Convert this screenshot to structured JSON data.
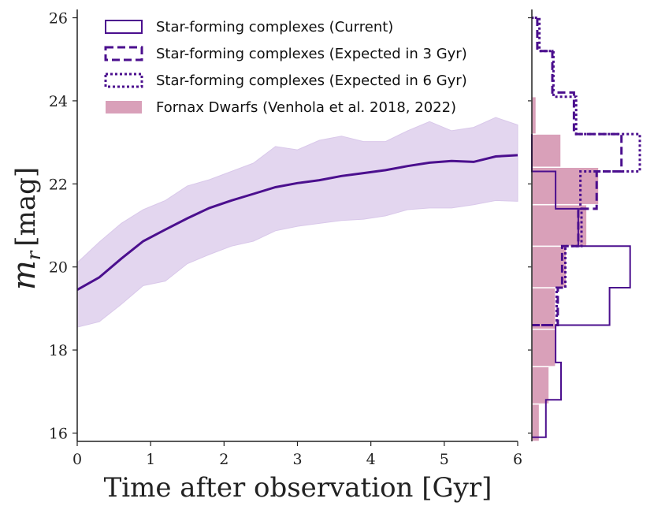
{
  "chart_data": {
    "main": {
      "type": "line",
      "xlabel": "Time after observation [Gyr]",
      "ylabel": {
        "symbol": "m",
        "subscript": "r",
        "unit": "[mag]"
      },
      "xlim": [
        0,
        6
      ],
      "ylim": [
        15.8,
        26.2
      ],
      "xticks": [
        0,
        1,
        2,
        3,
        4,
        5,
        6
      ],
      "yticks": [
        16,
        18,
        20,
        22,
        24,
        26
      ],
      "median": {
        "x": [
          0,
          0.3,
          0.6,
          0.9,
          1.2,
          1.5,
          1.8,
          2.1,
          2.4,
          2.7,
          3.0,
          3.3,
          3.6,
          3.9,
          4.2,
          4.5,
          4.8,
          5.1,
          5.4,
          5.7,
          6.0
        ],
        "y": [
          19.45,
          19.75,
          20.2,
          20.62,
          20.9,
          21.17,
          21.42,
          21.6,
          21.76,
          21.92,
          22.02,
          22.09,
          22.19,
          22.26,
          22.33,
          22.43,
          22.51,
          22.55,
          22.53,
          22.66,
          22.69
        ]
      },
      "band_upper": [
        20.1,
        20.6,
        21.05,
        21.38,
        21.6,
        21.95,
        22.1,
        22.3,
        22.5,
        22.9,
        22.82,
        23.05,
        23.15,
        23.02,
        23.02,
        23.28,
        23.5,
        23.28,
        23.36,
        23.6,
        23.42
      ],
      "band_lower": [
        18.55,
        18.68,
        19.1,
        19.55,
        19.66,
        20.08,
        20.3,
        20.5,
        20.62,
        20.87,
        20.98,
        21.05,
        21.12,
        21.15,
        21.23,
        21.38,
        21.42,
        21.42,
        21.5,
        21.6,
        21.58
      ],
      "line_color": "#4b0f8e",
      "band_color": "#e3d6ef"
    },
    "histogram": {
      "type": "histogram",
      "orientation": "horizontal",
      "xlim": [
        0,
        1
      ],
      "series": [
        {
          "name": "Fornax Dwarfs (Venhola et al. 2018, 2022)",
          "style": "filled",
          "color": "#d9a0b9",
          "bins": [
            [
              15.8,
              16.7,
              0.07
            ],
            [
              16.7,
              17.6,
              0.16
            ],
            [
              17.6,
              18.5,
              0.22
            ],
            [
              18.5,
              19.5,
              0.22
            ],
            [
              19.5,
              20.5,
              0.32
            ],
            [
              20.5,
              21.5,
              0.51
            ],
            [
              21.5,
              22.4,
              0.62
            ],
            [
              22.4,
              23.2,
              0.27
            ],
            [
              23.2,
              24.1,
              0.04
            ]
          ]
        },
        {
          "name": "Star-forming complexes (Current)",
          "style": "solid",
          "color": "#4b0f8e",
          "bins": [
            [
              15.9,
              16.8,
              0.13
            ],
            [
              16.8,
              17.7,
              0.27
            ],
            [
              17.7,
              18.6,
              0.22
            ],
            [
              18.6,
              19.5,
              0.72
            ],
            [
              19.5,
              20.5,
              0.91
            ],
            [
              20.5,
              21.4,
              0.43
            ],
            [
              21.4,
              22.3,
              0.22
            ],
            [
              22.3,
              23.2,
              0.0
            ]
          ]
        },
        {
          "name": "Star-forming complexes (Expected in 3 Gyr)",
          "style": "dashed",
          "color": "#4b0f8e",
          "bins": [
            [
              18.6,
              19.5,
              0.24
            ],
            [
              19.5,
              20.5,
              0.28
            ],
            [
              20.5,
              21.4,
              0.43
            ],
            [
              21.4,
              22.3,
              0.6
            ],
            [
              22.3,
              23.2,
              0.83
            ],
            [
              23.2,
              24.2,
              0.39
            ],
            [
              24.2,
              25.2,
              0.19
            ],
            [
              25.2,
              26.0,
              0.05
            ]
          ]
        },
        {
          "name": "Star-forming complexes (Expected in 6 Gyr)",
          "style": "dotted",
          "color": "#4b0f8e",
          "bins": [
            [
              18.6,
              19.5,
              0.23
            ],
            [
              19.5,
              20.5,
              0.31
            ],
            [
              20.5,
              21.4,
              0.46
            ],
            [
              21.4,
              22.3,
              0.45
            ],
            [
              22.3,
              23.2,
              1.0
            ],
            [
              23.2,
              24.1,
              0.41
            ],
            [
              24.1,
              25.2,
              0.2
            ],
            [
              25.2,
              26.0,
              0.07
            ]
          ]
        }
      ]
    },
    "legend": {
      "position": "top-left",
      "entries": [
        {
          "label": "Star-forming complexes (Current)",
          "style": "solid"
        },
        {
          "label": "Star-forming complexes (Expected in 3 Gyr)",
          "style": "dashed"
        },
        {
          "label": "Star-forming complexes (Expected in 6 Gyr)",
          "style": "dotted"
        },
        {
          "label": "Fornax Dwarfs (Venhola et al. 2018, 2022)",
          "style": "filled"
        }
      ]
    }
  }
}
